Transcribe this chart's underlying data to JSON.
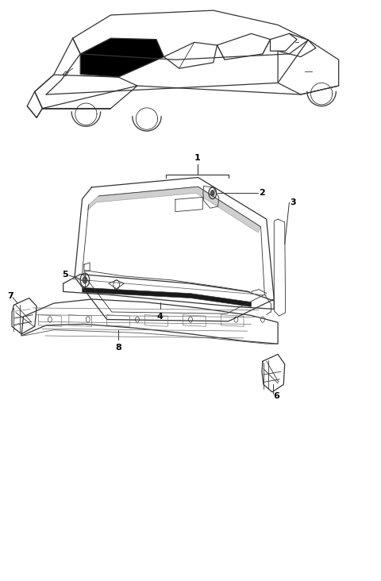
{
  "background_color": "#ffffff",
  "line_color": "#333333",
  "label_color": "#000000",
  "fig_width": 4.8,
  "fig_height": 7.32,
  "dpi": 100
}
